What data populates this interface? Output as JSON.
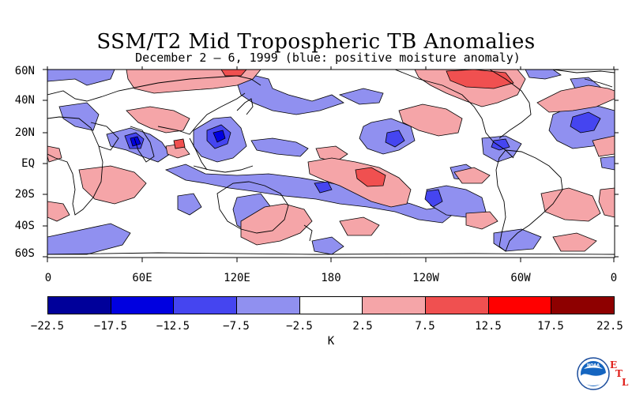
{
  "title": "SSM/T2 Mid Tropospheric TB Anomalies",
  "subtitle": "December 2 – 6, 1999 (blue: positive moisture anomaly)",
  "map": {
    "lat_labels": [
      "60N",
      "40N",
      "20N",
      "EQ",
      "20S",
      "40S",
      "60S"
    ],
    "lon_labels": [
      "0",
      "60E",
      "120E",
      "180",
      "120W",
      "60W",
      "0"
    ]
  },
  "colorbar": {
    "colors": [
      "#00009a",
      "#0000e0",
      "#4545f0",
      "#9090f0",
      "#ffffff",
      "#f5a5a8",
      "#f05050",
      "#ff0000",
      "#8e0000"
    ],
    "labels": [
      "−22.5",
      "−17.5",
      "−12.5",
      "−7.5",
      "−2.5",
      "2.5",
      "7.5",
      "12.5",
      "17.5",
      "22.5"
    ],
    "unit": "K"
  },
  "logo": {
    "icon": "noaa-logo-icon",
    "text": "NOAA",
    "letters": [
      "E",
      "T",
      "L"
    ]
  }
}
